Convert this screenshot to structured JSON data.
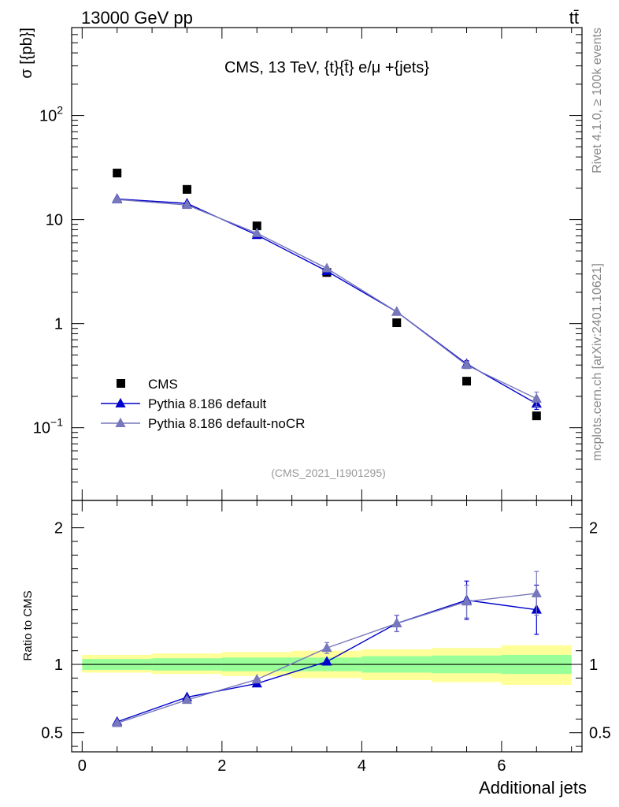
{
  "header": {
    "left": "13000 GeV pp",
    "right": "tt̄"
  },
  "side_labels": {
    "rivet": "Rivet 4.1.0, ≥ 100k events",
    "mcplots": "mcplots.cern.ch [arXiv:2401.10621]"
  },
  "chart_data": [
    {
      "type": "scatter",
      "panel": "main",
      "title": "CMS, 13 TeV, {t}{t̄} e/μ +{jets}",
      "analysis_id": "(CMS_2021_I1901295)",
      "ylabel": "σ [{pb}]",
      "yscale": "log",
      "ylim": [
        0.02,
        700
      ],
      "xlim": [
        -0.15,
        7.15
      ],
      "ytick_labels": [
        {
          "value": 0.1,
          "base": "10",
          "exp": "−1"
        },
        {
          "value": 1,
          "text": "1"
        },
        {
          "value": 10,
          "text": "10"
        },
        {
          "value": 100,
          "base": "10",
          "exp": "2"
        }
      ],
      "x": [
        0.5,
        1.5,
        2.5,
        3.5,
        4.5,
        5.5,
        6.5
      ],
      "series": [
        {
          "name": "CMS",
          "style": "square",
          "color": "#000000",
          "values": [
            28,
            19.5,
            8.7,
            3.1,
            1.02,
            0.28,
            0.13
          ]
        },
        {
          "name": "Pythia 8.186 default",
          "style": "triangle-line",
          "color": "#0000cc",
          "values": [
            15.8,
            14.3,
            7.1,
            3.2,
            1.3,
            0.41,
            0.17
          ],
          "errors": [
            0,
            0,
            0,
            0,
            0,
            0.03,
            0.02
          ]
        },
        {
          "name": "Pythia 8.186 default-noCR",
          "style": "triangle-line",
          "color": "#7777bb",
          "values": [
            15.6,
            13.8,
            7.4,
            3.4,
            1.3,
            0.4,
            0.19
          ],
          "errors": [
            0,
            0,
            0,
            0,
            0,
            0.03,
            0.03
          ]
        }
      ]
    },
    {
      "type": "line",
      "panel": "ratio",
      "xlabel": "Additional jets",
      "ylabel": "Ratio to CMS",
      "ylim": [
        0.36,
        2.2
      ],
      "xlim": [
        -0.15,
        7.15
      ],
      "xticks": [
        0,
        2,
        4,
        6
      ],
      "yticks": [
        0.5,
        1,
        2
      ],
      "ytick_labels": [
        "0.5",
        "1",
        "2"
      ],
      "x": [
        0.5,
        1.5,
        2.5,
        3.5,
        4.5,
        5.5,
        6.5
      ],
      "bands": {
        "edges": [
          0,
          1,
          2,
          3,
          4,
          5,
          6,
          7
        ],
        "stat_lo": [
          0.96,
          0.955,
          0.95,
          0.95,
          0.94,
          0.935,
          0.93
        ],
        "stat_hi": [
          1.04,
          1.045,
          1.05,
          1.05,
          1.06,
          1.065,
          1.07
        ],
        "total_lo": [
          0.94,
          0.93,
          0.915,
          0.9,
          0.885,
          0.87,
          0.85
        ],
        "total_hi": [
          1.07,
          1.08,
          1.09,
          1.1,
          1.11,
          1.12,
          1.14
        ],
        "stat_color": "#99ff99",
        "total_color": "#ffff99"
      },
      "series": [
        {
          "name": "Pythia 8.186 default",
          "color": "#0000cc",
          "values": [
            0.58,
            0.76,
            0.86,
            1.02,
            1.3,
            1.47,
            1.4
          ],
          "errors": [
            0,
            0,
            0,
            0,
            0.06,
            0.14,
            0.18
          ]
        },
        {
          "name": "Pythia 8.186 default-noCR",
          "color": "#7777bb",
          "values": [
            0.57,
            0.74,
            0.89,
            1.12,
            1.3,
            1.46,
            1.52
          ],
          "errors": [
            0,
            0,
            0,
            0.04,
            0.06,
            0.12,
            0.16
          ]
        }
      ]
    }
  ]
}
